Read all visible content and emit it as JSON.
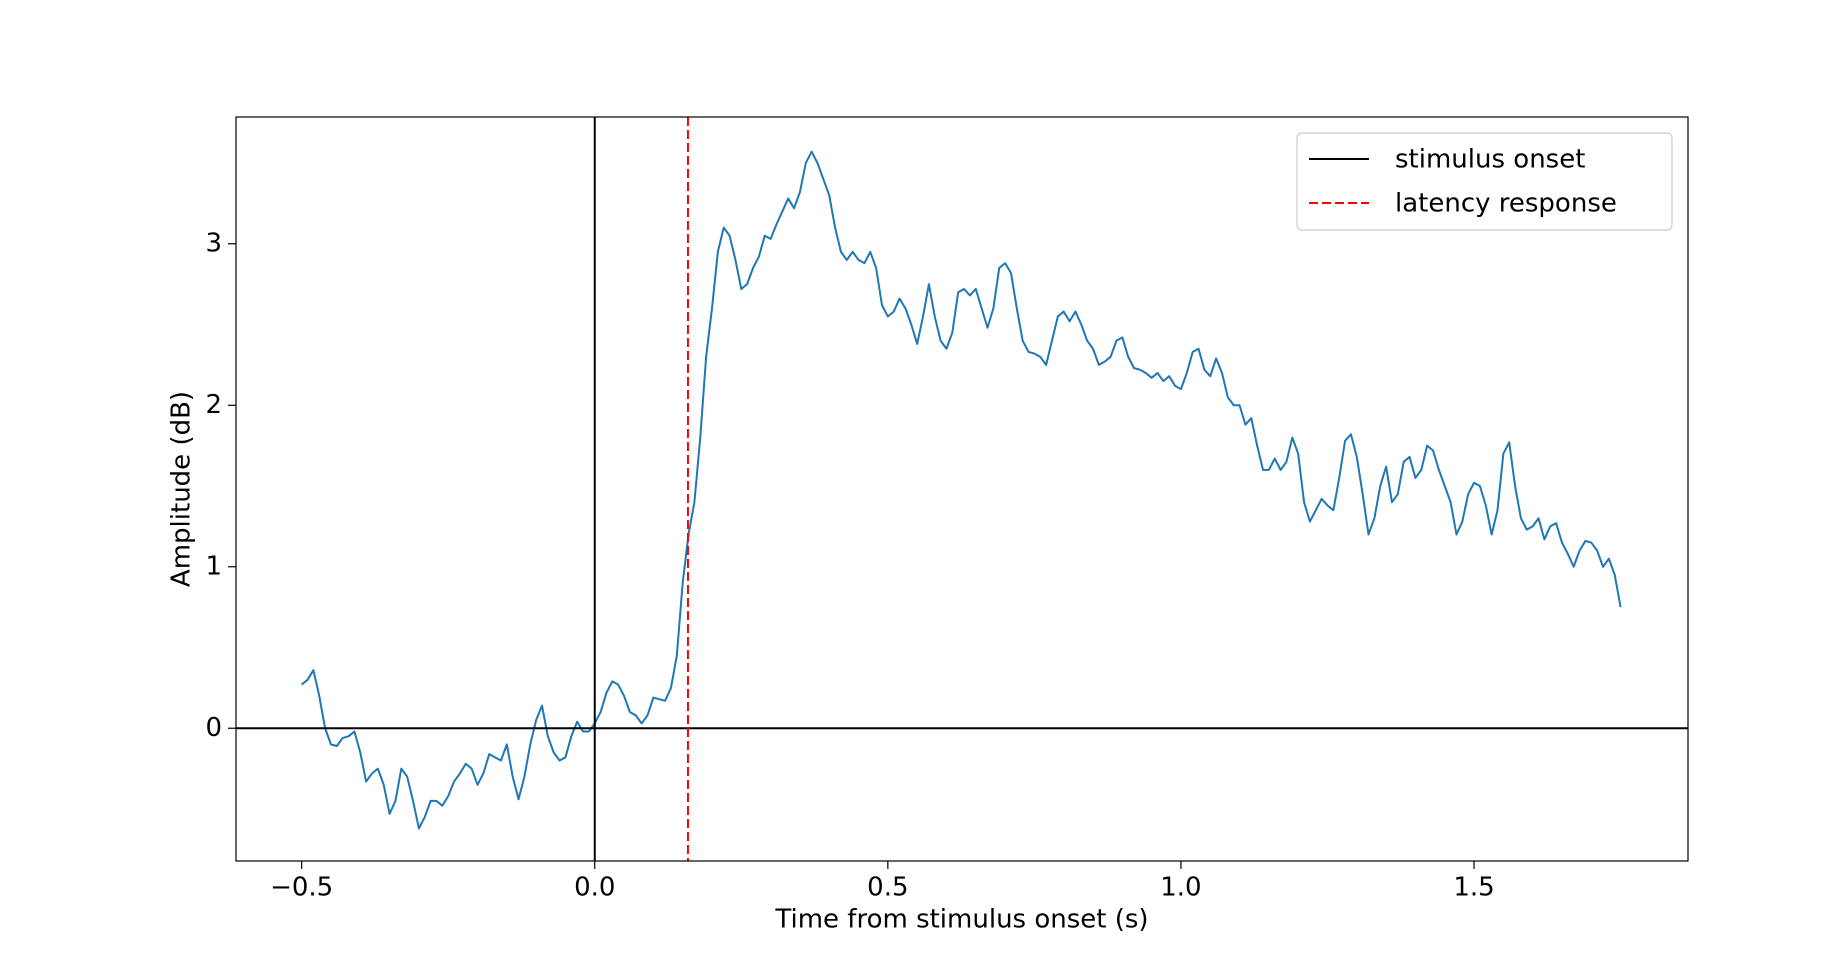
{
  "chart_data": {
    "type": "line",
    "xlabel": "Time from stimulus onset (s)",
    "ylabel": "Amplitude (dB)",
    "xlim": [
      -0.612,
      1.865
    ],
    "ylim": [
      -0.822,
      3.785
    ],
    "xticks": [
      {
        "value": -0.5,
        "label": "−0.5"
      },
      {
        "value": 0,
        "label": "0.0"
      },
      {
        "value": 0.5,
        "label": "0.5"
      },
      {
        "value": 1,
        "label": "1.0"
      },
      {
        "value": 1.5,
        "label": "1.5"
      }
    ],
    "yticks": [
      0,
      1,
      2,
      3
    ],
    "legend": "upper right",
    "hline": {
      "y": 0,
      "color": "#000000"
    },
    "vlines": [
      {
        "name": "stimulus onset",
        "x": 0,
        "color": "#000000",
        "style": "solid"
      },
      {
        "name": "latency response",
        "x": 0.159,
        "color": "#ff0000",
        "style": "dashed"
      }
    ],
    "x": [
      -0.5,
      -0.49,
      -0.48,
      -0.47,
      -0.46,
      -0.45,
      -0.44,
      -0.43,
      -0.42,
      -0.41,
      -0.4,
      -0.39,
      -0.38,
      -0.37,
      -0.36,
      -0.35,
      -0.34,
      -0.33,
      -0.32,
      -0.31,
      -0.3,
      -0.29,
      -0.28,
      -0.27,
      -0.26,
      -0.25,
      -0.24,
      -0.23,
      -0.22,
      -0.21,
      -0.2,
      -0.19,
      -0.18,
      -0.17,
      -0.16,
      -0.15,
      -0.14,
      -0.13,
      -0.12,
      -0.11,
      -0.1,
      -0.09,
      -0.08,
      -0.07,
      -0.06,
      -0.05,
      -0.04,
      -0.03,
      -0.02,
      -0.01,
      0,
      0.01,
      0.02,
      0.03,
      0.04,
      0.05,
      0.06,
      0.07,
      0.08,
      0.09,
      0.1,
      0.11,
      0.12,
      0.13,
      0.14,
      0.15,
      0.16,
      0.17,
      0.18,
      0.19,
      0.2,
      0.21,
      0.22,
      0.23,
      0.24,
      0.25,
      0.26,
      0.27,
      0.28,
      0.29,
      0.3,
      0.31,
      0.32,
      0.33,
      0.34,
      0.35,
      0.36,
      0.37,
      0.38,
      0.39,
      0.4,
      0.41,
      0.42,
      0.43,
      0.44,
      0.45,
      0.46,
      0.47,
      0.48,
      0.49,
      0.5,
      0.51,
      0.52,
      0.53,
      0.54,
      0.55,
      0.56,
      0.57,
      0.58,
      0.59,
      0.6,
      0.61,
      0.62,
      0.63,
      0.64,
      0.65,
      0.66,
      0.67,
      0.68,
      0.69,
      0.7,
      0.71,
      0.72,
      0.73,
      0.74,
      0.75,
      0.76,
      0.77,
      0.78,
      0.79,
      0.8,
      0.81,
      0.82,
      0.83,
      0.84,
      0.85,
      0.86,
      0.87,
      0.88,
      0.89,
      0.9,
      0.91,
      0.92,
      0.93,
      0.94,
      0.95,
      0.96,
      0.97,
      0.98,
      0.99,
      1,
      1.01,
      1.02,
      1.03,
      1.04,
      1.05,
      1.06,
      1.07,
      1.08,
      1.09,
      1.1,
      1.11,
      1.12,
      1.13,
      1.14,
      1.15,
      1.16,
      1.17,
      1.18,
      1.19,
      1.2,
      1.21,
      1.22,
      1.23,
      1.24,
      1.25,
      1.26,
      1.27,
      1.28,
      1.29,
      1.3,
      1.31,
      1.32,
      1.33,
      1.34,
      1.35,
      1.36,
      1.37,
      1.38,
      1.39,
      1.4,
      1.41,
      1.42,
      1.43,
      1.44,
      1.45,
      1.46,
      1.47,
      1.48,
      1.49,
      1.5,
      1.51,
      1.52,
      1.53,
      1.54,
      1.55,
      1.56,
      1.57,
      1.58,
      1.59,
      1.6,
      1.61,
      1.62,
      1.63,
      1.64,
      1.65,
      1.66,
      1.67,
      1.68,
      1.69,
      1.7,
      1.71,
      1.72,
      1.73,
      1.74,
      1.75
    ],
    "series": [
      {
        "color": "#1f77b4",
        "values": [
          0.27,
          0.3,
          0.36,
          0.2,
          0.0,
          -0.1,
          -0.11,
          -0.06,
          -0.05,
          -0.02,
          -0.15,
          -0.33,
          -0.28,
          -0.25,
          -0.35,
          -0.53,
          -0.45,
          -0.25,
          -0.3,
          -0.45,
          -0.62,
          -0.55,
          -0.45,
          -0.45,
          -0.48,
          -0.42,
          -0.33,
          -0.28,
          -0.22,
          -0.25,
          -0.35,
          -0.28,
          -0.16,
          -0.18,
          -0.2,
          -0.1,
          -0.3,
          -0.44,
          -0.3,
          -0.1,
          0.05,
          0.14,
          -0.05,
          -0.15,
          -0.2,
          -0.18,
          -0.05,
          0.04,
          -0.02,
          -0.02,
          0.03,
          0.1,
          0.22,
          0.29,
          0.27,
          0.2,
          0.1,
          0.08,
          0.03,
          0.08,
          0.19,
          0.18,
          0.17,
          0.25,
          0.45,
          0.9,
          1.2,
          1.4,
          1.8,
          2.3,
          2.6,
          2.95,
          3.1,
          3.05,
          2.9,
          2.72,
          2.75,
          2.85,
          2.92,
          3.05,
          3.03,
          3.12,
          3.2,
          3.28,
          3.22,
          3.32,
          3.5,
          3.57,
          3.5,
          3.4,
          3.3,
          3.1,
          2.95,
          2.9,
          2.95,
          2.9,
          2.88,
          2.95,
          2.85,
          2.62,
          2.55,
          2.58,
          2.66,
          2.6,
          2.5,
          2.38,
          2.55,
          2.75,
          2.55,
          2.4,
          2.35,
          2.45,
          2.7,
          2.72,
          2.68,
          2.72,
          2.6,
          2.48,
          2.6,
          2.85,
          2.88,
          2.82,
          2.6,
          2.4,
          2.33,
          2.32,
          2.3,
          2.25,
          2.4,
          2.55,
          2.58,
          2.52,
          2.58,
          2.5,
          2.4,
          2.35,
          2.25,
          2.27,
          2.3,
          2.4,
          2.42,
          2.3,
          2.23,
          2.22,
          2.2,
          2.17,
          2.2,
          2.15,
          2.18,
          2.12,
          2.1,
          2.2,
          2.33,
          2.35,
          2.22,
          2.18,
          2.29,
          2.2,
          2.05,
          2.0,
          2.0,
          1.88,
          1.92,
          1.75,
          1.6,
          1.6,
          1.67,
          1.6,
          1.65,
          1.8,
          1.7,
          1.4,
          1.28,
          1.35,
          1.42,
          1.38,
          1.35,
          1.55,
          1.78,
          1.82,
          1.68,
          1.45,
          1.2,
          1.3,
          1.5,
          1.62,
          1.4,
          1.45,
          1.65,
          1.68,
          1.55,
          1.6,
          1.75,
          1.72,
          1.6,
          1.5,
          1.4,
          1.2,
          1.28,
          1.45,
          1.52,
          1.5,
          1.38,
          1.2,
          1.35,
          1.7,
          1.77,
          1.5,
          1.3,
          1.23,
          1.25,
          1.3,
          1.17,
          1.25,
          1.27,
          1.15,
          1.08,
          1.0,
          1.1,
          1.16,
          1.15,
          1.1,
          1.0,
          1.05,
          0.95,
          0.75
        ]
      }
    ]
  }
}
